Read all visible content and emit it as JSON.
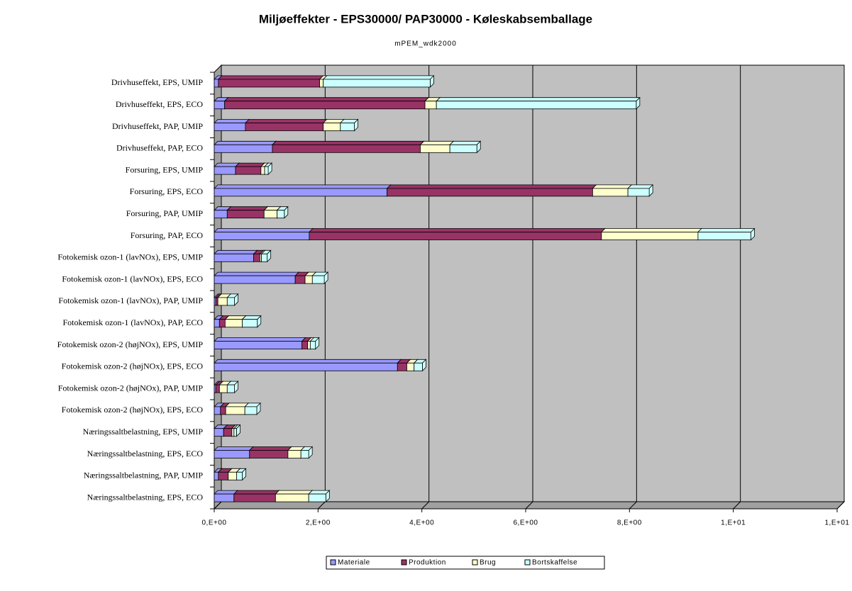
{
  "chart_data": {
    "type": "bar",
    "orientation": "horizontal",
    "stacked": true,
    "title": "Miljøeffekter - EPS30000/ PAP30000 - Køleskabsemballage",
    "subtitle": "mPEM_wdk2000",
    "categories": [
      "Drivhuseffekt, EPS, UMIP",
      "Drivhuseffekt, EPS, ECO",
      "Drivhuseffekt, PAP, UMIP",
      "Drivhuseffekt, PAP, ECO",
      "Forsuring, EPS, UMIP",
      "Forsuring, EPS, ECO",
      "Forsuring, PAP, UMIP",
      "Forsuring, PAP, ECO",
      "Fotokemisk ozon-1 (lavNOx), EPS, UMIP",
      "Fotokemisk ozon-1 (lavNOx), EPS, ECO",
      "Fotokemisk ozon-1 (lavNOx), PAP, UMIP",
      "Fotokemisk ozon-1 (lavNOx), PAP, ECO",
      "Fotokemisk ozon-2 (højNOx), EPS, UMIP",
      "Fotokemisk ozon-2 (højNOx), EPS, ECO",
      "Fotokemisk ozon-2 (højNOx), PAP, UMIP",
      "Fotokemisk ozon-2 (højNOx), EPS, ECO",
      "Næringssaltbelastning, EPS, UMIP",
      "Næringssaltbelastning, EPS, ECO",
      "Næringssaltbelastning, PAP, UMIP",
      "Næringssaltbelastning, EPS, ECO"
    ],
    "series": [
      {
        "name": "Materiale",
        "color": "#9999ff",
        "values": [
          0.08,
          0.2,
          0.6,
          1.12,
          0.41,
          3.33,
          0.25,
          1.83,
          0.76,
          1.56,
          0.03,
          0.1,
          1.69,
          3.53,
          0.03,
          0.12,
          0.18,
          0.68,
          0.08,
          0.38
        ]
      },
      {
        "name": "Produktion",
        "color": "#993366",
        "values": [
          1.95,
          3.86,
          1.5,
          2.85,
          0.49,
          3.96,
          0.71,
          5.63,
          0.12,
          0.19,
          0.04,
          0.11,
          0.11,
          0.18,
          0.07,
          0.1,
          0.16,
          0.74,
          0.19,
          0.8
        ]
      },
      {
        "name": "Brug",
        "color": "#ffffcc",
        "values": [
          0.07,
          0.22,
          0.33,
          0.57,
          0.07,
          0.68,
          0.25,
          1.86,
          0.03,
          0.14,
          0.18,
          0.33,
          0.05,
          0.14,
          0.15,
          0.37,
          0.04,
          0.25,
          0.16,
          0.64
        ]
      },
      {
        "name": "Bortskaffelse",
        "color": "#ccffff",
        "values": [
          2.06,
          3.85,
          0.27,
          0.52,
          0.07,
          0.41,
          0.14,
          1.02,
          0.11,
          0.23,
          0.14,
          0.29,
          0.1,
          0.16,
          0.14,
          0.23,
          0.05,
          0.15,
          0.11,
          0.33
        ]
      }
    ],
    "xlim": [
      0,
      12
    ],
    "xticks": [
      {
        "value": 0,
        "label": "0,E+00"
      },
      {
        "value": 2,
        "label": "2,E+00"
      },
      {
        "value": 4,
        "label": "4,E+00"
      },
      {
        "value": 6,
        "label": "6,E+00"
      },
      {
        "value": 8,
        "label": "8,E+00"
      },
      {
        "value": 10,
        "label": "1,E+01"
      },
      {
        "value": 12,
        "label": "1,E+01"
      }
    ],
    "grid": true,
    "legend": "bottom"
  }
}
